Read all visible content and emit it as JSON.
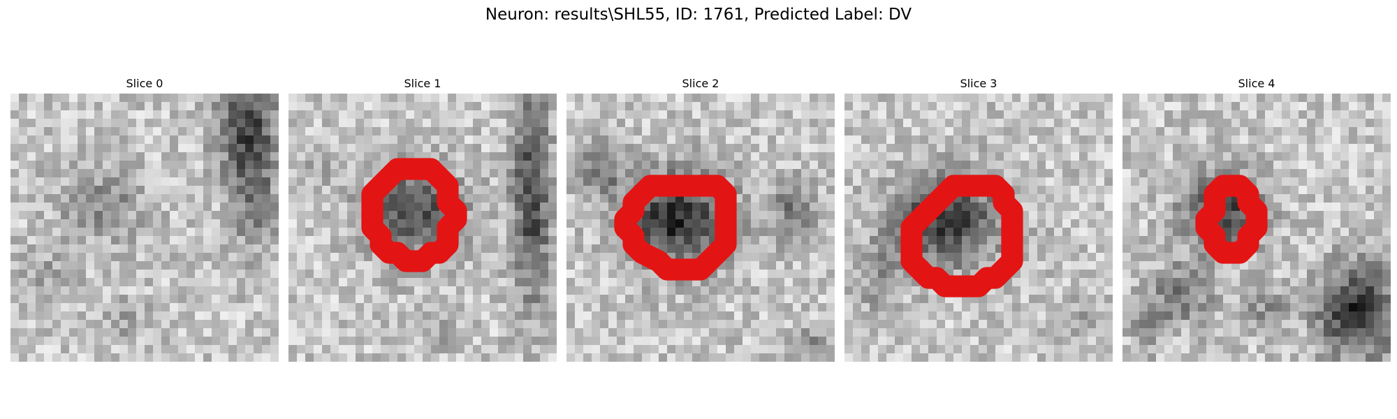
{
  "figure": {
    "title": "Neuron: results\\SHL55, ID: 1761, Predicted Label: DV"
  },
  "colors": {
    "contour": "#e31414",
    "colormap": "gray"
  },
  "slices": [
    {
      "title": "Slice 0",
      "contour": []
    },
    {
      "title": "Slice 1",
      "contour": [
        [
          15,
          9
        ],
        [
          17,
          9
        ],
        [
          18,
          10
        ],
        [
          19,
          11
        ],
        [
          19,
          13
        ],
        [
          20,
          14
        ],
        [
          20,
          15
        ],
        [
          19,
          16
        ],
        [
          19,
          18
        ],
        [
          18,
          19
        ],
        [
          17,
          19
        ],
        [
          16,
          20
        ],
        [
          14,
          20
        ],
        [
          13,
          19
        ],
        [
          12,
          19
        ],
        [
          11,
          18
        ],
        [
          11,
          17
        ],
        [
          10,
          16
        ],
        [
          10,
          12
        ],
        [
          11,
          11
        ],
        [
          13,
          9
        ]
      ]
    },
    {
      "title": "Slice 2",
      "contour": [
        [
          10,
          11
        ],
        [
          18,
          11
        ],
        [
          19,
          12
        ],
        [
          19,
          18
        ],
        [
          18,
          19
        ],
        [
          17,
          20
        ],
        [
          16,
          21
        ],
        [
          12,
          21
        ],
        [
          11,
          20
        ],
        [
          9,
          19
        ],
        [
          8,
          18
        ],
        [
          8,
          17
        ],
        [
          7,
          16
        ],
        [
          7,
          15
        ],
        [
          8,
          14
        ],
        [
          8,
          13
        ],
        [
          9,
          12
        ]
      ]
    },
    {
      "title": "Slice 3",
      "contour": [
        [
          13,
          11
        ],
        [
          18,
          11
        ],
        [
          19,
          12
        ],
        [
          19,
          13
        ],
        [
          20,
          14
        ],
        [
          20,
          20
        ],
        [
          19,
          21
        ],
        [
          18,
          22
        ],
        [
          17,
          22
        ],
        [
          16,
          23
        ],
        [
          12,
          23
        ],
        [
          11,
          22
        ],
        [
          10,
          22
        ],
        [
          9,
          21
        ],
        [
          8,
          20
        ],
        [
          8,
          16
        ],
        [
          9,
          15
        ],
        [
          10,
          14
        ],
        [
          11,
          13
        ]
      ]
    },
    {
      "title": "Slice 4",
      "contour": [
        [
          12,
          11
        ],
        [
          14,
          11
        ],
        [
          15,
          12
        ],
        [
          15,
          13
        ],
        [
          16,
          14
        ],
        [
          16,
          16
        ],
        [
          15,
          17
        ],
        [
          15,
          18
        ],
        [
          14,
          19
        ],
        [
          12,
          19
        ],
        [
          11,
          18
        ],
        [
          11,
          17
        ],
        [
          10,
          16
        ],
        [
          10,
          15
        ],
        [
          11,
          14
        ],
        [
          11,
          12
        ]
      ]
    }
  ]
}
